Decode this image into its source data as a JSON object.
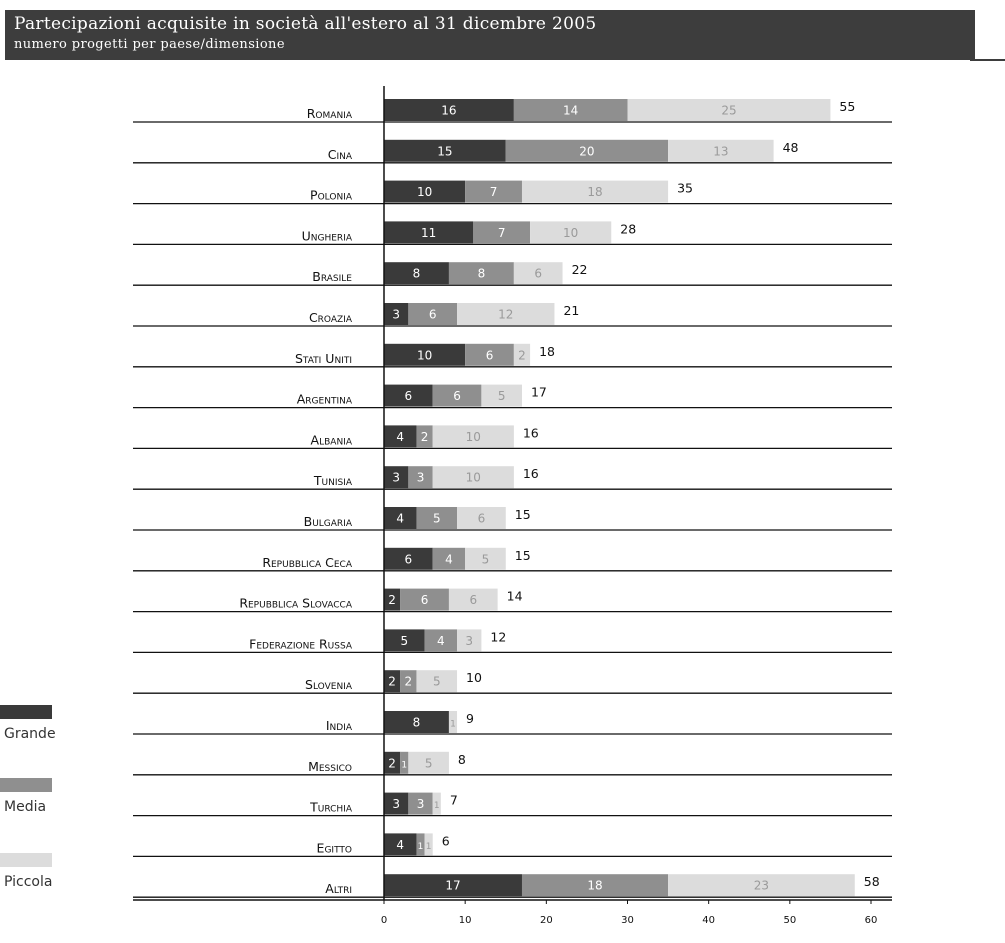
{
  "header": {
    "title": "Partecipazioni acquisite in società all'estero al 31 dicembre 2005",
    "subtitle": "numero progetti per paese/dimensione"
  },
  "colors": {
    "grande": "#3a3a3a",
    "media": "#8f8f8f",
    "piccola": "#dcdcdc",
    "header": "#3d3d3d"
  },
  "legend": [
    {
      "key": "grande",
      "label": "Grande"
    },
    {
      "key": "media",
      "label": "Media"
    },
    {
      "key": "piccola",
      "label": "Piccola"
    }
  ],
  "chart_data": {
    "type": "bar",
    "orientation": "horizontal",
    "stacked": true,
    "categories": [
      "Romania",
      "Cina",
      "Polonia",
      "Ungheria",
      "Brasile",
      "Croazia",
      "Stati Uniti",
      "Argentina",
      "Albania",
      "Tunisia",
      "Bulgaria",
      "Repubblica Ceca",
      "Repubblica Slovacca",
      "Federazione Russa",
      "Slovenia",
      "India",
      "Messico",
      "Turchia",
      "Egitto",
      "Altri"
    ],
    "series": [
      {
        "name": "Grande",
        "values": [
          16,
          15,
          10,
          11,
          8,
          3,
          10,
          6,
          4,
          3,
          4,
          6,
          2,
          5,
          2,
          8,
          2,
          3,
          4,
          17
        ]
      },
      {
        "name": "Media",
        "values": [
          14,
          20,
          7,
          7,
          8,
          6,
          6,
          6,
          2,
          3,
          5,
          4,
          6,
          4,
          2,
          0,
          1,
          3,
          1,
          18
        ]
      },
      {
        "name": "Piccola",
        "values": [
          25,
          13,
          18,
          10,
          6,
          12,
          2,
          5,
          10,
          10,
          6,
          5,
          6,
          3,
          5,
          1,
          5,
          1,
          1,
          23
        ]
      }
    ],
    "totals": [
      55,
      48,
      35,
      28,
      22,
      21,
      18,
      17,
      16,
      16,
      15,
      15,
      14,
      12,
      10,
      9,
      8,
      7,
      6,
      58
    ],
    "xlim": [
      0,
      60
    ],
    "xticks": [
      "0",
      "10",
      "20",
      "30",
      "40",
      "50",
      "60"
    ],
    "legend_position": "bottom-left"
  }
}
